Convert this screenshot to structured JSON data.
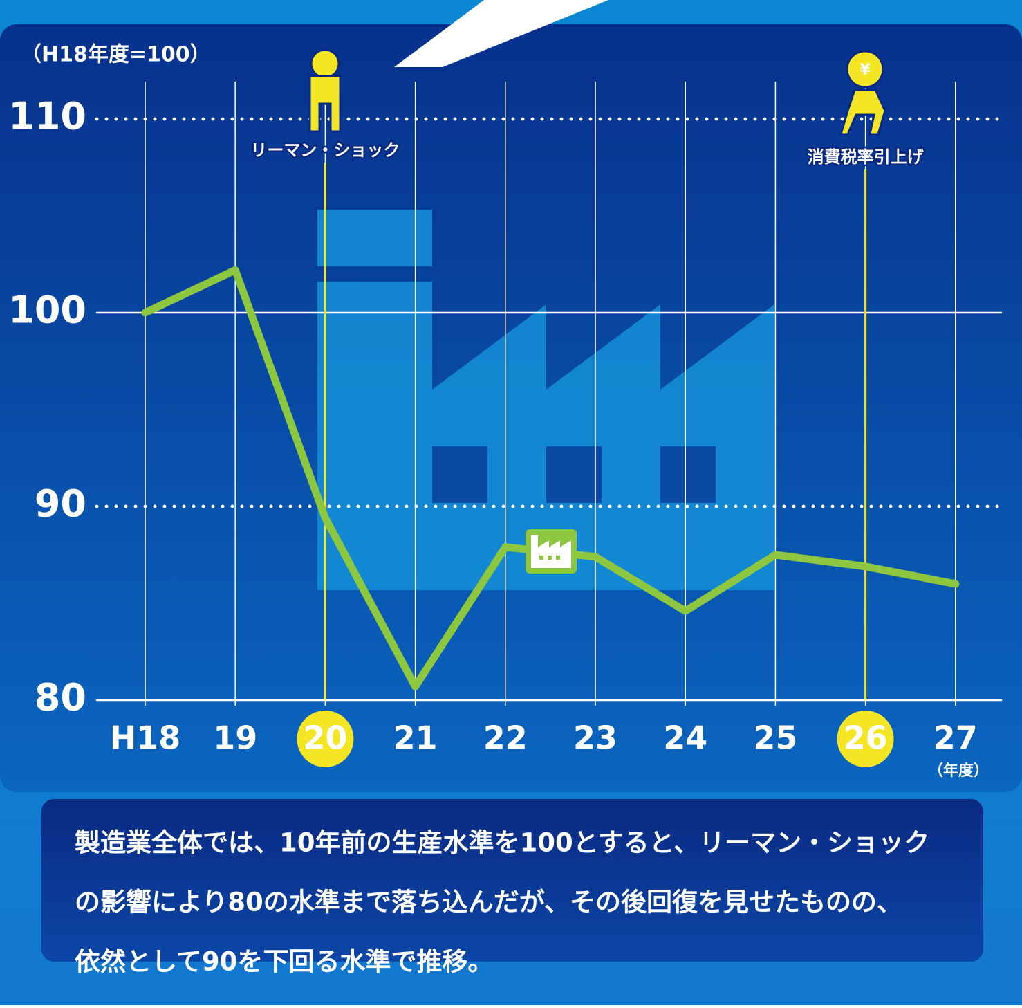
{
  "chart_data": {
    "type": "line",
    "y_unit_label": "（H18年度=100）",
    "x_unit_label": "（年度）",
    "categories": [
      "H18",
      "19",
      "20",
      "21",
      "22",
      "23",
      "24",
      "25",
      "26",
      "27"
    ],
    "values": [
      100,
      102.2,
      89.4,
      80.7,
      87.9,
      87.4,
      84.6,
      87.5,
      86.9,
      86.0
    ],
    "color": "#8dc63f",
    "ylim": [
      80,
      110
    ],
    "yticks": [
      80,
      90,
      100,
      110
    ],
    "grid": true,
    "annotation_color": "#f5e625",
    "annotations": [
      {
        "text": "リーマン・ショック",
        "category": "20"
      },
      {
        "text": "消費税率引上げ",
        "category": "26"
      }
    ],
    "description": [
      "製造業全体では、10年前の生産水準を100とすると、リーマン・ショック",
      "の影響により80の水準まで落ち込んだが、その後回復を見せたものの、",
      "依然として90を下回る水準で推移。"
    ]
  }
}
